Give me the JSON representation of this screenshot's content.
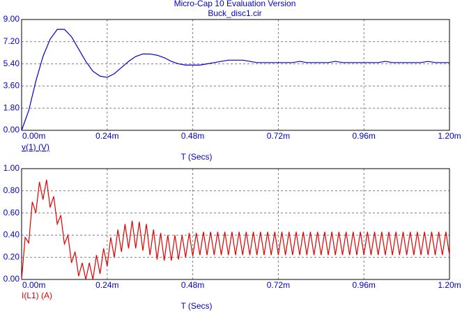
{
  "chart_data": [
    {
      "type": "line",
      "title": "Micro-Cap 10 Evaluation Version",
      "subtitle": "Buck_disc1.cir",
      "xlabel": "T (Secs)",
      "ylabel": "v(1) (V)",
      "grid": true,
      "xlim": [
        0,
        0.0012
      ],
      "ylim": [
        0,
        9
      ],
      "xticks": [
        {
          "value": 0,
          "label": "0.00m"
        },
        {
          "value": 0.00024,
          "label": "0.24m"
        },
        {
          "value": 0.00048,
          "label": "0.48m"
        },
        {
          "value": 0.00072,
          "label": "0.72m"
        },
        {
          "value": 0.00096,
          "label": "0.96m"
        },
        {
          "value": 0.0012,
          "label": "1.20m"
        }
      ],
      "yticks": [
        {
          "value": 0,
          "label": "0.00"
        },
        {
          "value": 1.8,
          "label": "1.80"
        },
        {
          "value": 3.6,
          "label": "3.60"
        },
        {
          "value": 5.4,
          "label": "5.40"
        },
        {
          "value": 7.2,
          "label": "7.20"
        },
        {
          "value": 9,
          "label": "9.00"
        }
      ],
      "x": [
        0,
        2e-05,
        4e-05,
        6e-05,
        8e-05,
        0.0001,
        0.00012,
        0.00014,
        0.00016,
        0.00018,
        0.0002,
        0.00022,
        0.00024,
        0.00026,
        0.00028,
        0.0003,
        0.00032,
        0.00034,
        0.00036,
        0.00038,
        0.0004,
        0.00042,
        0.00044,
        0.00046,
        0.00048,
        0.0005,
        0.00052,
        0.00054,
        0.00056,
        0.00058,
        0.0006,
        0.00062,
        0.00064,
        0.00066,
        0.00068,
        0.0007,
        0.00072,
        0.00074,
        0.00076,
        0.00078,
        0.0008,
        0.00082,
        0.00084,
        0.00086,
        0.00088,
        0.0009,
        0.00092,
        0.00094,
        0.00096,
        0.00098,
        0.001,
        0.00102,
        0.00104,
        0.00106,
        0.00108,
        0.0011,
        0.00112,
        0.00114,
        0.00116,
        0.00118,
        0.0012
      ],
      "series": [
        {
          "color": "#0000c8",
          "values": [
            0,
            1.6,
            4.0,
            6.0,
            7.4,
            8.2,
            8.2,
            7.6,
            6.6,
            5.6,
            4.8,
            4.4,
            4.3,
            4.6,
            5.1,
            5.6,
            6.0,
            6.2,
            6.2,
            6.1,
            5.9,
            5.6,
            5.4,
            5.3,
            5.3,
            5.3,
            5.4,
            5.5,
            5.6,
            5.7,
            5.7,
            5.7,
            5.6,
            5.5,
            5.5,
            5.5,
            5.5,
            5.5,
            5.5,
            5.6,
            5.5,
            5.5,
            5.5,
            5.5,
            5.6,
            5.5,
            5.5,
            5.5,
            5.5,
            5.5,
            5.5,
            5.6,
            5.5,
            5.5,
            5.5,
            5.5,
            5.5,
            5.6,
            5.5,
            5.5,
            5.5
          ]
        }
      ]
    },
    {
      "type": "line",
      "xlabel": "T (Secs)",
      "ylabel": "I(L1) (A)",
      "grid": true,
      "xlim": [
        0,
        0.0012
      ],
      "ylim": [
        0,
        1
      ],
      "xticks": [
        {
          "value": 0,
          "label": "0.00m"
        },
        {
          "value": 0.00024,
          "label": "0.24m"
        },
        {
          "value": 0.00048,
          "label": "0.48m"
        },
        {
          "value": 0.00072,
          "label": "0.72m"
        },
        {
          "value": 0.00096,
          "label": "0.96m"
        },
        {
          "value": 0.0012,
          "label": "1.20m"
        }
      ],
      "yticks": [
        {
          "value": 0,
          "label": "0.00"
        },
        {
          "value": 0.2,
          "label": "0.20"
        },
        {
          "value": 0.4,
          "label": "0.40"
        },
        {
          "value": 0.6,
          "label": "0.60"
        },
        {
          "value": 0.8,
          "label": "0.80"
        },
        {
          "value": 1,
          "label": "1.00"
        }
      ],
      "x": [
        0,
        1e-05,
        2e-05,
        3e-05,
        4e-05,
        5e-05,
        6e-05,
        7e-05,
        8e-05,
        9e-05,
        0.0001,
        0.00011,
        0.00012,
        0.00013,
        0.00014,
        0.00015,
        0.00016,
        0.00017,
        0.00018,
        0.00019,
        0.0002,
        0.00021,
        0.00022,
        0.00023,
        0.00024,
        0.00025,
        0.00026,
        0.00027,
        0.00028,
        0.00029,
        0.0003,
        0.00031,
        0.00032,
        0.00033,
        0.00034,
        0.00035,
        0.00036,
        0.00037,
        0.00038,
        0.00039,
        0.0004,
        0.00041,
        0.00042,
        0.00043,
        0.00044,
        0.00045,
        0.00046,
        0.00047,
        0.00048,
        0.00049,
        0.0005,
        0.00051,
        0.00052,
        0.00053,
        0.00054,
        0.00055,
        0.00056,
        0.00057,
        0.00058,
        0.00059,
        0.0006,
        0.00061,
        0.00062,
        0.00063,
        0.00064,
        0.00065,
        0.00066,
        0.00067,
        0.00068,
        0.00069,
        0.0007,
        0.00071,
        0.00072,
        0.00073,
        0.00074,
        0.00075,
        0.00076,
        0.00077,
        0.00078,
        0.00079,
        0.0008,
        0.00081,
        0.00082,
        0.00083,
        0.00084,
        0.00085,
        0.00086,
        0.00087,
        0.00088,
        0.00089,
        0.0009,
        0.00091,
        0.00092,
        0.00093,
        0.00094,
        0.00095,
        0.00096,
        0.00097,
        0.00098,
        0.00099,
        0.001,
        0.00101,
        0.00102,
        0.00103,
        0.00104,
        0.00105,
        0.00106,
        0.00107,
        0.00108,
        0.00109,
        0.0011,
        0.00111,
        0.00112,
        0.00113,
        0.00114,
        0.00115,
        0.00116,
        0.00117,
        0.00118,
        0.00119,
        0.0012
      ],
      "series": [
        {
          "color": "#e00000",
          "values": [
            0,
            0.38,
            0.33,
            0.7,
            0.6,
            0.88,
            0.72,
            0.9,
            0.65,
            0.75,
            0.5,
            0.58,
            0.32,
            0.4,
            0.15,
            0.25,
            0.03,
            0.15,
            0.0,
            0.15,
            0.0,
            0.22,
            0.05,
            0.28,
            0.12,
            0.38,
            0.2,
            0.45,
            0.25,
            0.5,
            0.28,
            0.53,
            0.28,
            0.52,
            0.26,
            0.5,
            0.22,
            0.45,
            0.18,
            0.42,
            0.17,
            0.4,
            0.17,
            0.4,
            0.18,
            0.4,
            0.2,
            0.42,
            0.21,
            0.42,
            0.22,
            0.43,
            0.22,
            0.43,
            0.22,
            0.43,
            0.22,
            0.43,
            0.22,
            0.43,
            0.22,
            0.43,
            0.22,
            0.43,
            0.22,
            0.43,
            0.22,
            0.43,
            0.22,
            0.43,
            0.22,
            0.43,
            0.22,
            0.43,
            0.22,
            0.43,
            0.22,
            0.43,
            0.22,
            0.43,
            0.22,
            0.43,
            0.22,
            0.43,
            0.22,
            0.43,
            0.22,
            0.43,
            0.22,
            0.43,
            0.22,
            0.43,
            0.22,
            0.43,
            0.22,
            0.43,
            0.22,
            0.43,
            0.22,
            0.43,
            0.22,
            0.43,
            0.22,
            0.43,
            0.22,
            0.43,
            0.22,
            0.43,
            0.22,
            0.43,
            0.22,
            0.43,
            0.22,
            0.43,
            0.22,
            0.43,
            0.22,
            0.43,
            0.22,
            0.43,
            0.22
          ]
        }
      ]
    }
  ]
}
